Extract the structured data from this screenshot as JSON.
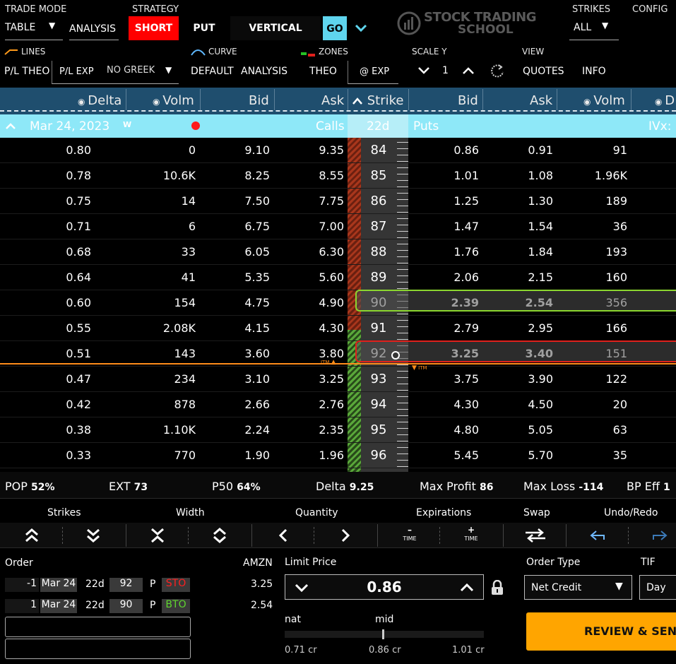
{
  "top": {
    "trade_mode_label": "TRADE MODE",
    "trade_mode_value": "TABLE",
    "strategy_label": "STRATEGY",
    "analysis_label": "ANALYSIS",
    "short_label": "SHORT",
    "put_label": "PUT",
    "vertical_label": "VERTICAL",
    "go_label": "GO",
    "logo_line1": "STOCK TRADING",
    "logo_line2": "SCHOOL",
    "strikes_label": "STRIKES",
    "strikes_value": "ALL",
    "config_label": "CONFIG"
  },
  "row2": {
    "lines_label": "LINES",
    "curve_label": "CURVE",
    "zones_label": "ZONES",
    "scale_y_label": "SCALE Y",
    "view_label": "VIEW",
    "pl_theo": "P/L THEO",
    "pl_exp": "P/L EXP",
    "no_greek": "NO GREEK",
    "default": "DEFAULT",
    "analysis": "ANALYSIS",
    "theo": "THEO",
    "at_exp": "@ EXP",
    "scale_value": "1",
    "quotes": "QUOTES",
    "info": "INFO"
  },
  "columns": {
    "delta": "Delta",
    "volm": "Volm",
    "bid": "Bid",
    "ask": "Ask",
    "strike": "Strike",
    "bid2": "Bid",
    "ask2": "Ask",
    "volm2": "Volm",
    "d_partial": "D"
  },
  "expiry": {
    "date": "Mar 24, 2023",
    "weekly": "W",
    "calls": "Calls",
    "dte": "22d",
    "puts": "Puts",
    "ivx": "IVx:"
  },
  "rows": [
    {
      "delta": "0.80",
      "cvol": "0",
      "cbid": "9.10",
      "cask": "9.35",
      "strike": "84",
      "pbid": "0.86",
      "pask": "0.91",
      "pvol": "91"
    },
    {
      "delta": "0.78",
      "cvol": "10.6K",
      "cbid": "8.25",
      "cask": "8.55",
      "strike": "85",
      "pbid": "1.01",
      "pask": "1.08",
      "pvol": "1.96K"
    },
    {
      "delta": "0.75",
      "cvol": "14",
      "cbid": "7.50",
      "cask": "7.75",
      "strike": "86",
      "pbid": "1.25",
      "pask": "1.30",
      "pvol": "189"
    },
    {
      "delta": "0.71",
      "cvol": "6",
      "cbid": "6.75",
      "cask": "7.00",
      "strike": "87",
      "pbid": "1.47",
      "pask": "1.54",
      "pvol": "36"
    },
    {
      "delta": "0.68",
      "cvol": "33",
      "cbid": "6.05",
      "cask": "6.30",
      "strike": "88",
      "pbid": "1.76",
      "pask": "1.84",
      "pvol": "193"
    },
    {
      "delta": "0.64",
      "cvol": "41",
      "cbid": "5.35",
      "cask": "5.60",
      "strike": "89",
      "pbid": "2.06",
      "pask": "2.15",
      "pvol": "160"
    },
    {
      "delta": "0.60",
      "cvol": "154",
      "cbid": "4.75",
      "cask": "4.90",
      "strike": "90",
      "pbid": "2.39",
      "pask": "2.54",
      "pvol": "356"
    },
    {
      "delta": "0.55",
      "cvol": "2.08K",
      "cbid": "4.15",
      "cask": "4.30",
      "strike": "91",
      "pbid": "2.79",
      "pask": "2.95",
      "pvol": "166"
    },
    {
      "delta": "0.51",
      "cvol": "143",
      "cbid": "3.60",
      "cask": "3.80",
      "strike": "92",
      "pbid": "3.25",
      "pask": "3.40",
      "pvol": "151"
    },
    {
      "delta": "0.47",
      "cvol": "234",
      "cbid": "3.10",
      "cask": "3.25",
      "strike": "93",
      "pbid": "3.75",
      "pask": "3.90",
      "pvol": "122"
    },
    {
      "delta": "0.42",
      "cvol": "878",
      "cbid": "2.66",
      "cask": "2.76",
      "strike": "94",
      "pbid": "4.30",
      "pask": "4.50",
      "pvol": "20"
    },
    {
      "delta": "0.38",
      "cvol": "1.10K",
      "cbid": "2.24",
      "cask": "2.35",
      "strike": "95",
      "pbid": "4.80",
      "pask": "5.05",
      "pvol": "63"
    },
    {
      "delta": "0.33",
      "cvol": "770",
      "cbid": "1.90",
      "cask": "1.96",
      "strike": "96",
      "pbid": "5.45",
      "pask": "5.70",
      "pvol": "35"
    }
  ],
  "itm": "ITM",
  "stats": {
    "pop_label": "POP",
    "pop": "52%",
    "ext_label": "EXT",
    "ext": "73",
    "p50_label": "P50",
    "p50": "64%",
    "delta_label": "Delta",
    "delta": "9.25",
    "maxp_label": "Max Profit",
    "maxp": "86",
    "maxl_label": "Max Loss",
    "maxl": "-114",
    "bp_label": "BP Eff",
    "bp": "1"
  },
  "controls": {
    "strikes": "Strikes",
    "width": "Width",
    "quantity": "Quantity",
    "expirations": "Expirations",
    "swap": "Swap",
    "undo_redo": "Undo/Redo",
    "time": "TIME",
    "minus": "–",
    "plus": "+"
  },
  "order": {
    "label": "Order",
    "symbol": "AMZN",
    "legs": [
      {
        "qty": "-1",
        "exp": "Mar 24",
        "dte": "22d",
        "strike": "92",
        "type": "P",
        "action": "STO",
        "price": "3.25"
      },
      {
        "qty": "1",
        "exp": "Mar 24",
        "dte": "22d",
        "strike": "90",
        "type": "P",
        "action": "BTO",
        "price": "2.54"
      }
    ],
    "limit_label": "Limit Price",
    "limit_value": "0.86",
    "nat_label": "nat",
    "mid_label": "mid",
    "nat_value": "0.71 cr",
    "mid_value": "0.86 cr",
    "far_value": "1.01 cr",
    "order_type_label": "Order Type",
    "order_type": "Net Credit",
    "tif_label": "TIF",
    "tif": "Day",
    "review": "REVIEW & SEN"
  },
  "colors": {
    "short_red": "#ff0000",
    "go_cyan": "#5fd5ee",
    "header_blue": "#1f4e6e",
    "expiry_band": "#8ee8f8",
    "green": "#8bd62f",
    "red": "#e0201c",
    "review_orange": "#ffa500",
    "itm_orange": "#ff8c1a"
  }
}
